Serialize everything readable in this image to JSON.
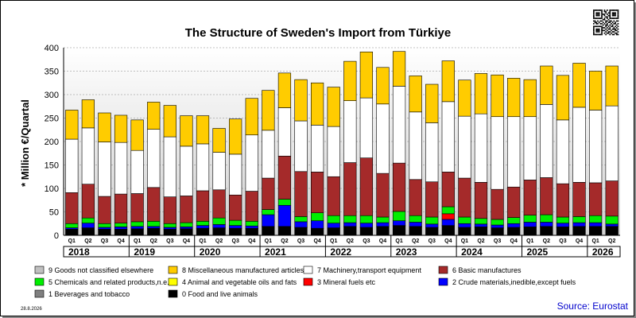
{
  "chart_data": {
    "type": "bar",
    "stacked": true,
    "title": "The Structure of Sweden's Import from Türkiye",
    "ylabel": "* Million €/Quartal",
    "ylim": [
      0,
      400
    ],
    "yticks": [
      0,
      50,
      100,
      150,
      200,
      250,
      300,
      350,
      400
    ],
    "grid": true,
    "legend_position": "bottom",
    "source": "Source: Eurostat",
    "date": "28.8.2026",
    "years": [
      "2018",
      "2019",
      "2020",
      "2021",
      "2022",
      "2023",
      "2024",
      "2025",
      "2026"
    ],
    "categories": [
      "Q1",
      "Q2",
      "Q3",
      "Q4",
      "Q1",
      "Q2",
      "Q3",
      "Q4",
      "Q1",
      "Q2",
      "Q3",
      "Q4",
      "Q1",
      "Q2",
      "Q3",
      "Q4",
      "Q1",
      "Q2",
      "Q3",
      "Q4",
      "Q1",
      "Q2",
      "Q3",
      "Q4",
      "Q1",
      "Q2",
      "Q3",
      "Q4",
      "Q1",
      "Q2",
      "Q3",
      "Q4",
      "Q1",
      "Q2"
    ],
    "series": [
      {
        "name": "0 Food and live animals",
        "color": "#000000",
        "values": [
          12,
          15,
          12,
          12,
          13,
          14,
          12,
          13,
          14,
          15,
          14,
          14,
          18,
          18,
          16,
          14,
          15,
          18,
          16,
          18,
          20,
          18,
          16,
          20,
          16,
          17,
          15,
          16,
          17,
          18,
          17,
          18,
          18,
          18
        ]
      },
      {
        "name": "1 Beverages and tobacco",
        "color": "#7f7f7f",
        "values": [
          1,
          1,
          1,
          1,
          1,
          1,
          1,
          1,
          1,
          1,
          1,
          1,
          1,
          1,
          1,
          1,
          1,
          1,
          1,
          1,
          1,
          1,
          1,
          1,
          1,
          1,
          1,
          1,
          1,
          1,
          1,
          1,
          1,
          1
        ]
      },
      {
        "name": "2 Crude materials,inedible,except fuels",
        "color": "#0000ff",
        "values": [
          3,
          10,
          4,
          5,
          5,
          4,
          4,
          4,
          6,
          7,
          6,
          5,
          25,
          45,
          12,
          16,
          10,
          8,
          9,
          8,
          10,
          9,
          7,
          13,
          8,
          6,
          6,
          8,
          10,
          9,
          8,
          8,
          8,
          5
        ]
      },
      {
        "name": "3 Mineral fuels etc",
        "color": "#ff0000",
        "values": [
          0,
          0,
          0,
          0,
          0,
          0,
          0,
          0,
          0,
          0,
          0,
          0,
          0,
          0,
          0,
          0,
          0,
          0,
          0,
          0,
          0,
          0,
          0,
          12,
          0,
          0,
          0,
          0,
          0,
          0,
          0,
          0,
          0,
          0
        ]
      },
      {
        "name": "5 Chemicals and related products,n.e.s.",
        "color": "#00ee00",
        "values": [
          9,
          11,
          8,
          8,
          10,
          11,
          8,
          9,
          9,
          14,
          11,
          10,
          11,
          13,
          11,
          17,
          16,
          15,
          16,
          12,
          20,
          14,
          15,
          15,
          14,
          12,
          12,
          13,
          15,
          16,
          13,
          13,
          15,
          17
        ]
      },
      {
        "name": "4 Animal and vegetable oils and fats",
        "color": "#ffff00",
        "values": [
          0,
          0,
          0,
          0,
          0,
          0,
          0,
          0,
          0,
          0,
          0,
          0,
          0,
          0,
          0,
          0,
          0,
          0,
          0,
          0,
          0,
          0,
          0,
          0,
          0,
          0,
          0,
          0,
          0,
          0,
          0,
          0,
          0,
          0
        ]
      },
      {
        "name": "6 Basic manufactures",
        "color": "#a52a2a",
        "values": [
          66,
          72,
          58,
          62,
          60,
          72,
          57,
          57,
          65,
          60,
          54,
          64,
          67,
          92,
          96,
          87,
          83,
          113,
          123,
          93,
          103,
          77,
          75,
          74,
          83,
          77,
          64,
          65,
          75,
          79,
          71,
          73,
          70,
          75
        ]
      },
      {
        "name": "7 Machinery,transport equipment",
        "color": "#ffffff",
        "values": [
          114,
          120,
          116,
          110,
          92,
          124,
          128,
          106,
          100,
          80,
          87,
          120,
          102,
          103,
          108,
          100,
          107,
          132,
          128,
          148,
          164,
          144,
          126,
          150,
          132,
          146,
          155,
          150,
          135,
          156,
          136,
          160,
          155,
          160
        ]
      },
      {
        "name": "8 Miscellaneous manufactured articles",
        "color": "#ffcc00",
        "values": [
          62,
          60,
          62,
          58,
          65,
          58,
          67,
          65,
          60,
          51,
          75,
          78,
          85,
          74,
          88,
          90,
          84,
          84,
          98,
          78,
          74,
          77,
          82,
          87,
          77,
          86,
          89,
          82,
          79,
          82,
          95,
          94,
          83,
          85
        ]
      },
      {
        "name": "9 Goods not classified elsewhere",
        "color": "#c0c0c0",
        "values": [
          0,
          0,
          0,
          0,
          0,
          0,
          0,
          0,
          0,
          0,
          0,
          0,
          0,
          0,
          0,
          0,
          0,
          0,
          0,
          0,
          0,
          0,
          0,
          0,
          0,
          0,
          0,
          0,
          0,
          0,
          0,
          0,
          0,
          0
        ]
      }
    ]
  },
  "legend": [
    {
      "label": "9 Goods not classified elsewhere",
      "color": "#c0c0c0"
    },
    {
      "label": "8 Miscellaneous manufactured articles",
      "color": "#ffcc00"
    },
    {
      "label": "7 Machinery,transport equipment",
      "color": "#ffffff"
    },
    {
      "label": "6 Basic manufactures",
      "color": "#a52a2a"
    },
    {
      "label": "5 Chemicals and related products,n.e.s.",
      "color": "#00ee00"
    },
    {
      "label": "4 Animal and vegetable oils and fats",
      "color": "#ffff00"
    },
    {
      "label": "3 Mineral fuels etc",
      "color": "#ff0000"
    },
    {
      "label": "2 Crude materials,inedible,except fuels",
      "color": "#0000ff"
    },
    {
      "label": "1 Beverages and tobacco",
      "color": "#7f7f7f"
    },
    {
      "label": "0 Food and live animals",
      "color": "#000000"
    }
  ]
}
